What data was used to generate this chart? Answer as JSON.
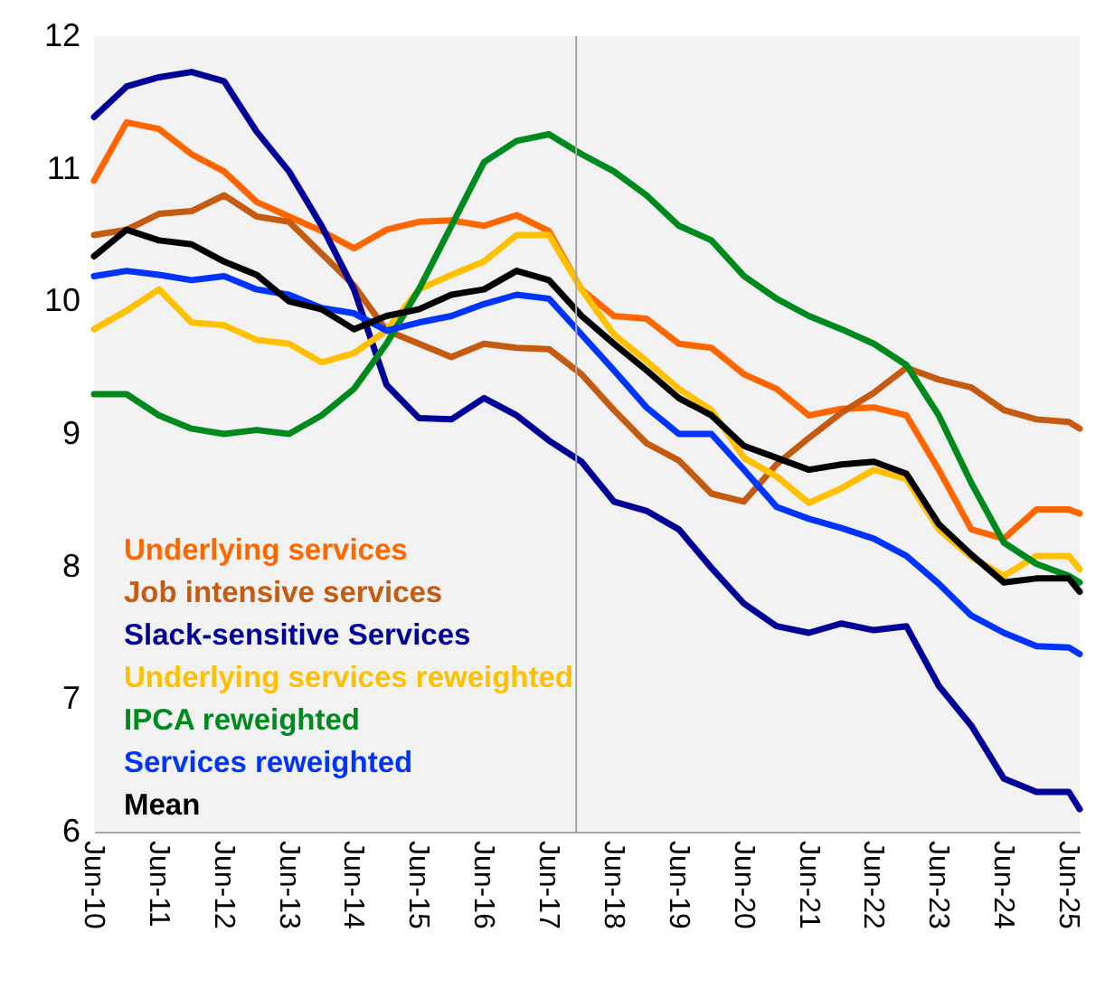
{
  "chart_data": {
    "type": "line",
    "x": [
      "2010-06",
      "2010-12",
      "2011-06",
      "2011-12",
      "2012-06",
      "2012-12",
      "2013-06",
      "2013-12",
      "2014-06",
      "2014-12",
      "2015-06",
      "2015-12",
      "2016-06",
      "2016-12",
      "2017-06",
      "2017-12",
      "2018-06",
      "2018-12",
      "2019-06",
      "2019-12",
      "2020-06",
      "2020-12",
      "2021-06",
      "2021-12",
      "2022-06",
      "2022-12",
      "2023-06",
      "2023-12",
      "2024-06",
      "2024-12",
      "2025-06",
      "2025-08"
    ],
    "xlim": [
      "2010-06",
      "2025-08"
    ],
    "xticks": [
      {
        "value": "2010-06",
        "label": "Jun-10"
      },
      {
        "value": "2011-06",
        "label": "Jun-11"
      },
      {
        "value": "2012-06",
        "label": "Jun-12"
      },
      {
        "value": "2013-06",
        "label": "Jun-13"
      },
      {
        "value": "2014-06",
        "label": "Jun-14"
      },
      {
        "value": "2015-06",
        "label": "Jun-15"
      },
      {
        "value": "2016-06",
        "label": "Jun-16"
      },
      {
        "value": "2017-06",
        "label": "Jun-17"
      },
      {
        "value": "2018-06",
        "label": "Jun-18"
      },
      {
        "value": "2019-06",
        "label": "Jun-19"
      },
      {
        "value": "2020-06",
        "label": "Jun-20"
      },
      {
        "value": "2021-06",
        "label": "Jun-21"
      },
      {
        "value": "2022-06",
        "label": "Jun-22"
      },
      {
        "value": "2023-06",
        "label": "Jun-23"
      },
      {
        "value": "2024-06",
        "label": "Jun-24"
      },
      {
        "value": "2025-06",
        "label": "Jun-25"
      }
    ],
    "ylim": [
      6,
      12
    ],
    "yticks": [
      6,
      7,
      8,
      9,
      10,
      11,
      12
    ],
    "grid": false,
    "legend": "bottom left",
    "marker": "none",
    "line_style": "solid",
    "ref_lines": [
      {
        "axis": "x",
        "value": "2017-11",
        "color": "#a6a6a6"
      }
    ],
    "series": [
      {
        "name": "Underlying services",
        "color": "#ff6600",
        "values": [
          10.91,
          11.35,
          11.3,
          11.11,
          10.98,
          10.75,
          10.64,
          10.53,
          10.4,
          10.54,
          10.6,
          10.61,
          10.57,
          10.65,
          10.53,
          10.09,
          9.89,
          9.87,
          9.68,
          9.65,
          9.45,
          9.34,
          9.14,
          9.19,
          9.2,
          9.14,
          8.73,
          8.28,
          8.21,
          8.43,
          8.43,
          8.4
        ]
      },
      {
        "name": "Job intensive services",
        "color": "#c55a11",
        "values": [
          10.5,
          10.54,
          10.66,
          10.68,
          10.8,
          10.64,
          10.6,
          10.36,
          10.12,
          9.78,
          9.68,
          9.58,
          9.68,
          9.65,
          9.64,
          9.45,
          9.18,
          8.93,
          8.8,
          8.55,
          8.49,
          8.77,
          8.97,
          9.16,
          9.31,
          9.5,
          9.41,
          9.35,
          9.18,
          9.11,
          9.09,
          9.04
        ]
      },
      {
        "name": "Slack-sensitive Services",
        "color": "#000099",
        "values": [
          11.39,
          11.62,
          11.69,
          11.73,
          11.66,
          11.28,
          10.98,
          10.57,
          10.09,
          9.37,
          9.12,
          9.11,
          9.27,
          9.14,
          8.95,
          8.79,
          8.49,
          8.42,
          8.28,
          7.99,
          7.72,
          7.55,
          7.5,
          7.57,
          7.52,
          7.55,
          7.1,
          6.8,
          6.4,
          6.3,
          6.3,
          6.17
        ]
      },
      {
        "name": "Underlying services reweighted",
        "color": "#ffc000",
        "values": [
          9.79,
          9.93,
          10.09,
          9.84,
          9.82,
          9.71,
          9.68,
          9.54,
          9.61,
          9.78,
          10.09,
          10.2,
          10.3,
          10.5,
          10.5,
          10.09,
          9.75,
          9.55,
          9.34,
          9.18,
          8.82,
          8.68,
          8.48,
          8.59,
          8.73,
          8.66,
          8.28,
          8.07,
          7.93,
          8.08,
          8.08,
          7.98
        ]
      },
      {
        "name": "IPCA reweighted",
        "color": "#008a1e",
        "values": [
          9.3,
          9.3,
          9.14,
          9.04,
          9.0,
          9.03,
          9.0,
          9.14,
          9.34,
          9.68,
          10.09,
          10.57,
          11.05,
          11.21,
          11.26,
          11.11,
          10.98,
          10.8,
          10.57,
          10.46,
          10.19,
          10.02,
          9.89,
          9.79,
          9.68,
          9.52,
          9.14,
          8.63,
          8.18,
          8.02,
          7.93,
          7.88
        ]
      },
      {
        "name": "Services reweighted",
        "color": "#0033ff",
        "values": [
          10.19,
          10.23,
          10.2,
          10.16,
          10.19,
          10.09,
          10.05,
          9.95,
          9.91,
          9.78,
          9.84,
          9.89,
          9.98,
          10.05,
          10.02,
          9.75,
          9.48,
          9.2,
          9.0,
          9.0,
          8.73,
          8.45,
          8.36,
          8.29,
          8.21,
          8.08,
          7.87,
          7.63,
          7.5,
          7.4,
          7.39,
          7.34
        ]
      },
      {
        "name": "Mean",
        "color": "#000000",
        "values": [
          10.34,
          10.54,
          10.46,
          10.43,
          10.3,
          10.2,
          10.0,
          9.94,
          9.79,
          9.89,
          9.94,
          10.05,
          10.09,
          10.23,
          10.16,
          9.89,
          9.68,
          9.48,
          9.27,
          9.14,
          8.91,
          8.82,
          8.73,
          8.77,
          8.79,
          8.7,
          8.32,
          8.09,
          7.88,
          7.91,
          7.91,
          7.81
        ]
      }
    ]
  }
}
